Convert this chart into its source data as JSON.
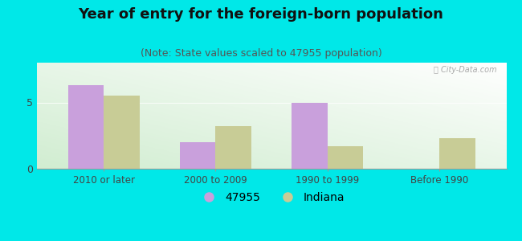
{
  "title": "Year of entry for the foreign-born population",
  "subtitle": "(Note: State values scaled to 47955 population)",
  "categories": [
    "2010 or later",
    "2000 to 2009",
    "1990 to 1999",
    "Before 1990"
  ],
  "series_47955": [
    6.3,
    2.0,
    5.0,
    0.0
  ],
  "series_indiana": [
    5.5,
    3.2,
    1.7,
    2.3
  ],
  "color_47955": "#c9a0dc",
  "color_indiana": "#c8cc96",
  "background_outer": "#00e8e8",
  "ylim": [
    0,
    8
  ],
  "yticks": [
    0,
    5
  ],
  "legend_label_1": "47955",
  "legend_label_2": "Indiana",
  "bar_width": 0.32,
  "title_fontsize": 13,
  "subtitle_fontsize": 9
}
